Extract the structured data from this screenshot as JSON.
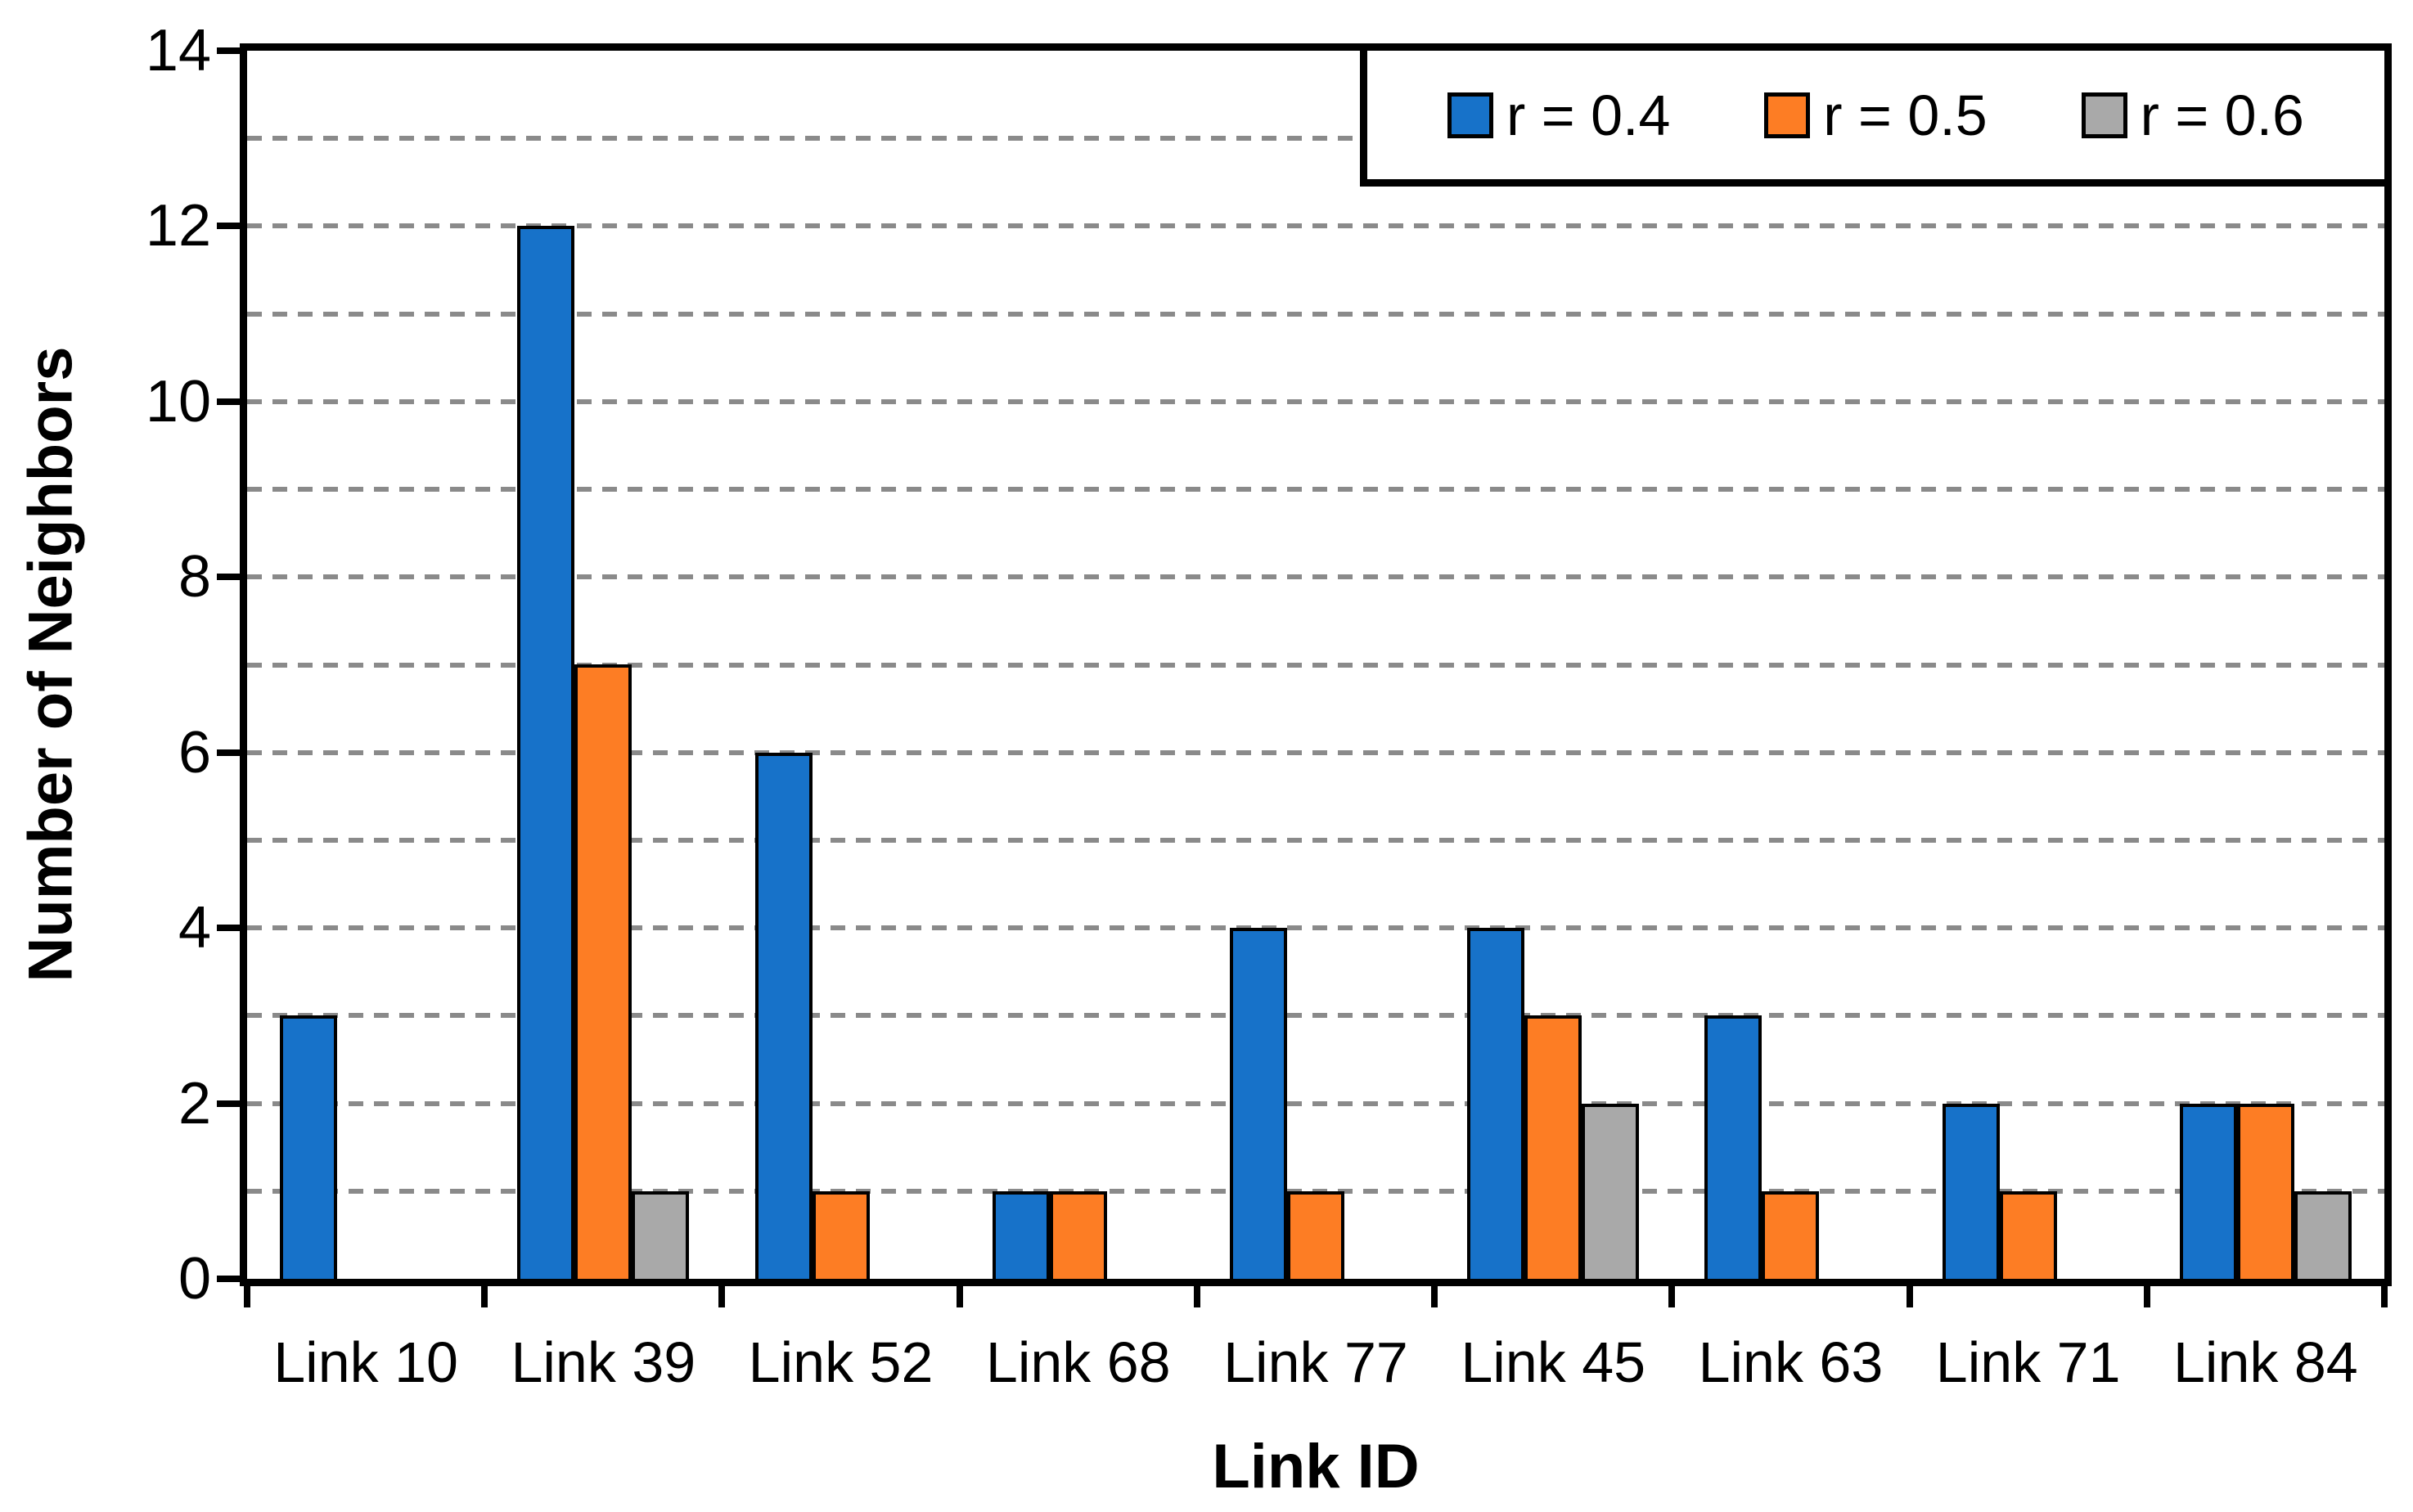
{
  "chart_data": {
    "type": "bar",
    "title": "",
    "xlabel": "Link ID",
    "ylabel": "Number of Neighbors",
    "categories": [
      "Link 10",
      "Link 39",
      "Link 52",
      "Link 68",
      "Link 77",
      "Link 45",
      "Link 63",
      "Link 71",
      "Link 84"
    ],
    "series": [
      {
        "name": "r = 0.4",
        "color": "#1772C9",
        "values": [
          3,
          12,
          6,
          1,
          4,
          4,
          3,
          2,
          2
        ]
      },
      {
        "name": "r = 0.5",
        "color": "#FD7D24",
        "values": [
          0,
          7,
          1,
          1,
          1,
          3,
          1,
          1,
          2
        ]
      },
      {
        "name": "r = 0.6",
        "color": "#A9A9A9",
        "values": [
          0,
          1,
          0,
          0,
          0,
          2,
          0,
          0,
          1
        ]
      }
    ],
    "ylim": [
      0,
      14
    ],
    "ytick_step": 2,
    "yticks": [
      0,
      2,
      4,
      6,
      8,
      10,
      12,
      14
    ],
    "gridline_step": 1,
    "grid": "horizontal-dashed",
    "gridline_color": "#8A8A8A",
    "axis_color": "#000000",
    "bar_outline_color": "#000000",
    "legend_position": "top-right",
    "legend_labels": [
      "r = 0.4",
      "r = 0.5",
      "r = 0.6"
    ]
  }
}
